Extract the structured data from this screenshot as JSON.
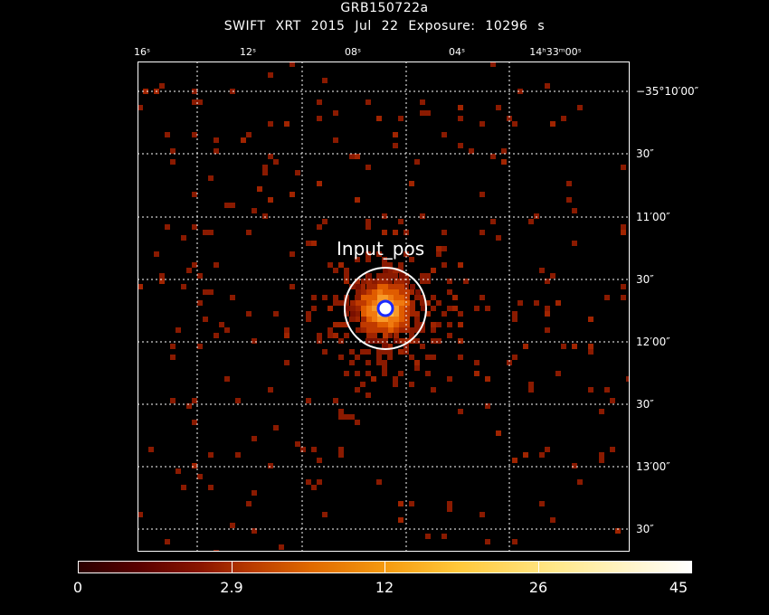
{
  "title": "GRB150722a",
  "subtitle": "SWIFT XRT   2015 Jul 22    Exposure: 10296 s",
  "ra_ticks": [
    {
      "label": "16ˢ"
    },
    {
      "label": "12ˢ"
    },
    {
      "label": "08ˢ"
    },
    {
      "label": "04ˢ"
    },
    {
      "label": "14ʰ33ᵐ00ˢ"
    }
  ],
  "dec_ticks": [
    {
      "label": "−35°10′00″"
    },
    {
      "label": "30″"
    },
    {
      "label": "11′00″"
    },
    {
      "label": "30″"
    },
    {
      "label": "12′00″"
    },
    {
      "label": "30″"
    },
    {
      "label": "13′00″"
    },
    {
      "label": "30″"
    }
  ],
  "source_label": "Input_pos",
  "colorbar": {
    "labels": [
      "0",
      "2.9",
      "12",
      "26",
      "45"
    ],
    "min": 0,
    "max": 45
  },
  "colors": {
    "background": "#000000",
    "grid": "#ffffff",
    "circle": "#ffffff",
    "center_marker": "#1a2aff",
    "pixel_low": "#8a1a00"
  }
}
